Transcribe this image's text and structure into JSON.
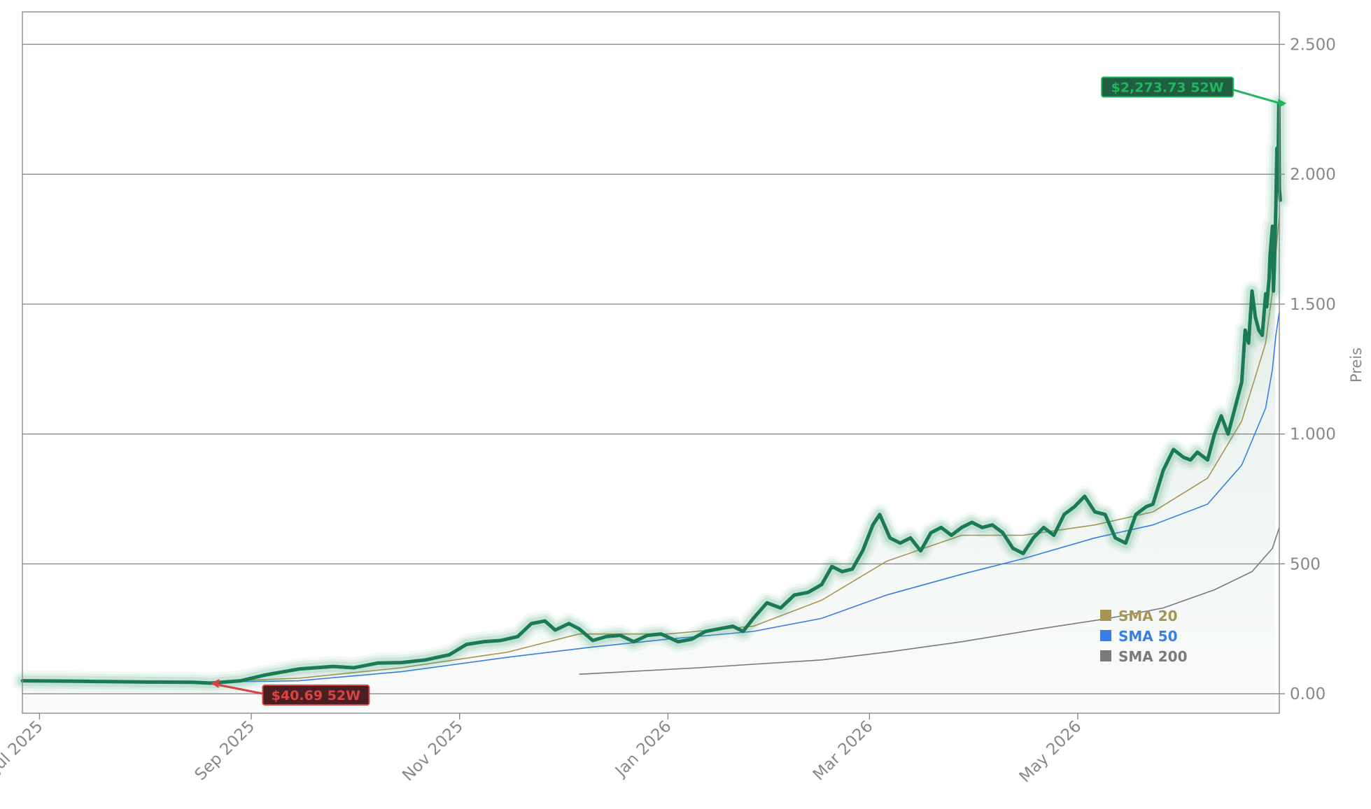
{
  "chart_data": {
    "type": "line",
    "ylabel": "Preis",
    "ylim": [
      -75,
      2625
    ],
    "y_ticks": [
      {
        "value": 0,
        "label": "0.00"
      },
      {
        "value": 500,
        "label": "500"
      },
      {
        "value": 1000,
        "label": "1.000"
      },
      {
        "value": 1500,
        "label": "1.500"
      },
      {
        "value": 2000,
        "label": "2.000"
      },
      {
        "value": 2500,
        "label": "2.500"
      }
    ],
    "y_grid": [
      0,
      500,
      1000,
      1500,
      2000,
      2500
    ],
    "xlim": [
      "2025-06-26",
      "2026-06-29"
    ],
    "x_ticks": [
      {
        "date": "2025-07-01",
        "label": "Jul 2025"
      },
      {
        "date": "2025-09-01",
        "label": "Sep 2025"
      },
      {
        "date": "2025-11-01",
        "label": "Nov 2025"
      },
      {
        "date": "2026-01-01",
        "label": "Jan 2026"
      },
      {
        "date": "2026-03-01",
        "label": "Mar 2026"
      },
      {
        "date": "2026-05-01",
        "label": "May 2026"
      }
    ],
    "colors": {
      "price": "#1a7a55",
      "price_glow": "#2e9a6e",
      "area": "#dce9e3",
      "sma20": "#a89555",
      "sma50": "#3a7fe0",
      "sma200": "#7a7a7a",
      "high": "#22b560",
      "low": "#d64545",
      "axis": "#888888"
    },
    "series": [
      {
        "name": "Price",
        "points": [
          [
            "2025-06-26",
            50
          ],
          [
            "2025-07-12",
            48
          ],
          [
            "2025-08-01",
            45
          ],
          [
            "2025-08-15",
            44
          ],
          [
            "2025-08-20",
            40.69
          ],
          [
            "2025-08-29",
            50
          ],
          [
            "2025-09-05",
            72
          ],
          [
            "2025-09-15",
            95
          ],
          [
            "2025-09-25",
            105
          ],
          [
            "2025-10-01",
            100
          ],
          [
            "2025-10-08",
            118
          ],
          [
            "2025-10-15",
            120
          ],
          [
            "2025-10-22",
            130
          ],
          [
            "2025-10-29",
            150
          ],
          [
            "2025-11-03",
            190
          ],
          [
            "2025-11-08",
            200
          ],
          [
            "2025-11-13",
            205
          ],
          [
            "2025-11-18",
            220
          ],
          [
            "2025-11-22",
            270
          ],
          [
            "2025-11-26",
            280
          ],
          [
            "2025-11-29",
            245
          ],
          [
            "2025-12-03",
            270
          ],
          [
            "2025-12-06",
            250
          ],
          [
            "2025-12-10",
            205
          ],
          [
            "2025-12-14",
            220
          ],
          [
            "2025-12-18",
            225
          ],
          [
            "2025-12-22",
            200
          ],
          [
            "2025-12-26",
            225
          ],
          [
            "2025-12-30",
            230
          ],
          [
            "2026-01-04",
            200
          ],
          [
            "2026-01-08",
            210
          ],
          [
            "2026-01-12",
            240
          ],
          [
            "2026-01-16",
            250
          ],
          [
            "2026-01-20",
            260
          ],
          [
            "2026-01-23",
            240
          ],
          [
            "2026-01-26",
            290
          ],
          [
            "2026-01-30",
            350
          ],
          [
            "2026-02-03",
            330
          ],
          [
            "2026-02-07",
            380
          ],
          [
            "2026-02-11",
            390
          ],
          [
            "2026-02-15",
            420
          ],
          [
            "2026-02-18",
            490
          ],
          [
            "2026-02-21",
            470
          ],
          [
            "2026-02-24",
            480
          ],
          [
            "2026-02-27",
            550
          ],
          [
            "2026-03-02",
            650
          ],
          [
            "2026-03-04",
            690
          ],
          [
            "2026-03-07",
            600
          ],
          [
            "2026-03-10",
            580
          ],
          [
            "2026-03-13",
            600
          ],
          [
            "2026-03-16",
            550
          ],
          [
            "2026-03-19",
            620
          ],
          [
            "2026-03-22",
            640
          ],
          [
            "2026-03-25",
            610
          ],
          [
            "2026-03-28",
            640
          ],
          [
            "2026-03-31",
            660
          ],
          [
            "2026-04-03",
            640
          ],
          [
            "2026-04-06",
            650
          ],
          [
            "2026-04-09",
            620
          ],
          [
            "2026-04-12",
            560
          ],
          [
            "2026-04-15",
            540
          ],
          [
            "2026-04-18",
            600
          ],
          [
            "2026-04-21",
            640
          ],
          [
            "2026-04-24",
            610
          ],
          [
            "2026-04-27",
            690
          ],
          [
            "2026-04-30",
            720
          ],
          [
            "2026-05-03",
            760
          ],
          [
            "2026-05-06",
            700
          ],
          [
            "2026-05-09",
            690
          ],
          [
            "2026-05-12",
            600
          ],
          [
            "2026-05-15",
            580
          ],
          [
            "2026-05-18",
            690
          ],
          [
            "2026-05-21",
            720
          ],
          [
            "2026-05-23",
            730
          ],
          [
            "2026-05-26",
            860
          ],
          [
            "2026-05-29",
            940
          ],
          [
            "2026-06-01",
            910
          ],
          [
            "2026-06-03",
            900
          ],
          [
            "2026-06-05",
            930
          ],
          [
            "2026-06-08",
            900
          ],
          [
            "2026-06-10",
            1000
          ],
          [
            "2026-06-12",
            1070
          ],
          [
            "2026-06-14",
            1000
          ],
          [
            "2026-06-16",
            1100
          ],
          [
            "2026-06-18",
            1200
          ],
          [
            "2026-06-19",
            1400
          ],
          [
            "2026-06-20",
            1350
          ],
          [
            "2026-06-21",
            1550
          ],
          [
            "2026-06-22",
            1450
          ],
          [
            "2026-06-23",
            1400
          ],
          [
            "2026-06-24",
            1380
          ],
          [
            "2026-06-25",
            1540
          ],
          [
            "2026-06-25",
            1490
          ],
          [
            "2026-06-26",
            1600
          ],
          [
            "2026-06-26",
            1690
          ],
          [
            "2026-06-27",
            1800
          ],
          [
            "2026-06-27",
            1550
          ],
          [
            "2026-06-27",
            1650
          ],
          [
            "2026-06-28",
            1880
          ],
          [
            "2026-06-28",
            2100
          ],
          [
            "2026-06-28",
            1950
          ],
          [
            "2026-06-28",
            2273.73
          ],
          [
            "2026-06-29",
            1950
          ],
          [
            "2026-06-29",
            1900
          ]
        ]
      },
      {
        "name": "SMA 20",
        "points": [
          [
            "2025-07-15",
            45
          ],
          [
            "2025-08-15",
            43
          ],
          [
            "2025-09-15",
            60
          ],
          [
            "2025-10-15",
            100
          ],
          [
            "2025-11-15",
            160
          ],
          [
            "2025-12-06",
            230
          ],
          [
            "2026-01-01",
            230
          ],
          [
            "2026-01-26",
            260
          ],
          [
            "2026-02-15",
            360
          ],
          [
            "2026-03-06",
            510
          ],
          [
            "2026-03-28",
            610
          ],
          [
            "2026-04-15",
            610
          ],
          [
            "2026-05-06",
            650
          ],
          [
            "2026-05-23",
            700
          ],
          [
            "2026-06-08",
            830
          ],
          [
            "2026-06-18",
            1050
          ],
          [
            "2026-06-25",
            1350
          ],
          [
            "2026-06-27",
            1550
          ],
          [
            "2026-06-28",
            1700
          ],
          [
            "2026-06-29",
            1840
          ]
        ]
      },
      {
        "name": "SMA 50",
        "points": [
          [
            "2025-07-15",
            45
          ],
          [
            "2025-08-15",
            44
          ],
          [
            "2025-09-15",
            50
          ],
          [
            "2025-10-15",
            85
          ],
          [
            "2025-11-15",
            140
          ],
          [
            "2025-12-10",
            180
          ],
          [
            "2026-01-01",
            210
          ],
          [
            "2026-01-26",
            240
          ],
          [
            "2026-02-15",
            290
          ],
          [
            "2026-03-06",
            380
          ],
          [
            "2026-03-28",
            460
          ],
          [
            "2026-04-15",
            520
          ],
          [
            "2026-05-06",
            600
          ],
          [
            "2026-05-23",
            650
          ],
          [
            "2026-06-08",
            730
          ],
          [
            "2026-06-18",
            880
          ],
          [
            "2026-06-25",
            1100
          ],
          [
            "2026-06-27",
            1250
          ],
          [
            "2026-06-28",
            1380
          ],
          [
            "2026-06-29",
            1470
          ]
        ]
      },
      {
        "name": "SMA 200",
        "points": [
          [
            "2025-12-06",
            75
          ],
          [
            "2026-01-10",
            100
          ],
          [
            "2026-02-15",
            130
          ],
          [
            "2026-03-06",
            160
          ],
          [
            "2026-03-28",
            200
          ],
          [
            "2026-04-20",
            250
          ],
          [
            "2026-05-10",
            290
          ],
          [
            "2026-05-26",
            330
          ],
          [
            "2026-06-10",
            400
          ],
          [
            "2026-06-21",
            470
          ],
          [
            "2026-06-27",
            560
          ],
          [
            "2026-06-29",
            640
          ]
        ]
      }
    ],
    "legend": {
      "position": "lower-right",
      "items": [
        {
          "label": "SMA 20",
          "color": "#a89555"
        },
        {
          "label": "SMA 50",
          "color": "#3a7fe0"
        },
        {
          "label": "SMA 200",
          "color": "#7a7a7a"
        }
      ]
    },
    "annotations": [
      {
        "kind": "high",
        "date": "2026-06-28",
        "value": 2273.73,
        "text": "$2,273.73 52W"
      },
      {
        "kind": "low",
        "date": "2025-08-20",
        "value": 40.69,
        "text": "$40.69 52W"
      }
    ]
  }
}
